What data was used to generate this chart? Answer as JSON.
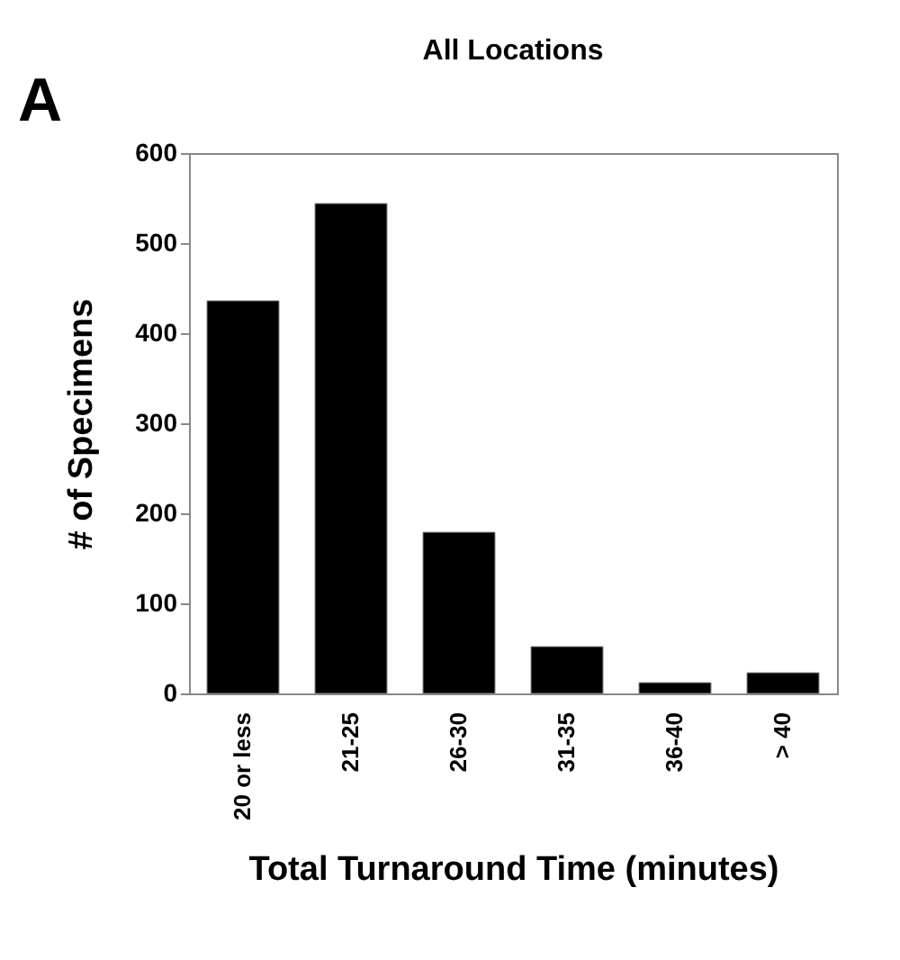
{
  "chart_data": {
    "type": "bar",
    "title": "All Locations",
    "xlabel": "Total Turnaround Time (minutes)",
    "ylabel": "# of Specimens",
    "categories": [
      "20 or less",
      "21-25",
      "26-30",
      "31-35",
      "36-40",
      "> 40"
    ],
    "values": [
      436,
      544,
      179,
      52,
      12,
      23
    ],
    "color": "#000000",
    "ylim": [
      0,
      600
    ],
    "yticks": [
      0,
      100,
      200,
      300,
      400,
      500,
      600
    ],
    "grid": false,
    "annotations": [
      "A"
    ]
  }
}
